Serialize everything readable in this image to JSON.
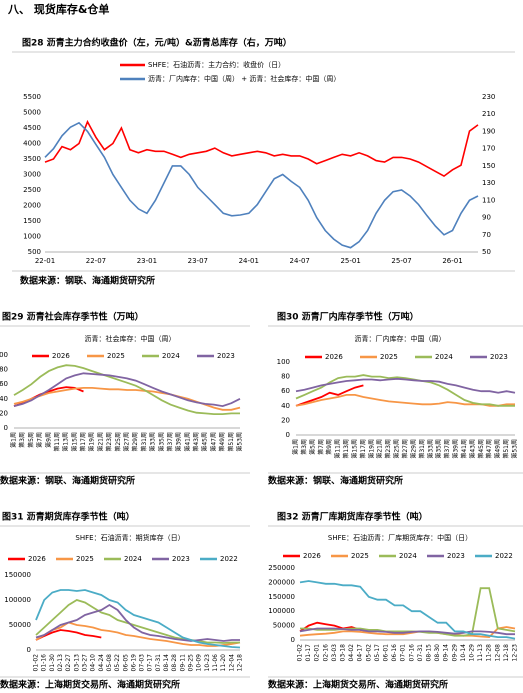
{
  "heading": "八、 现货库存&仓单",
  "chart_data": [
    {
      "type": "line",
      "title": "图28 沥青主力合约收盘价（左，元/吨）&沥青总库存（右，万吨）",
      "source": "数据来源：钢联、海通期货研究所",
      "categories": [
        "22-01",
        null,
        null,
        null,
        null,
        null,
        "22-07",
        null,
        null,
        null,
        null,
        null,
        "23-01",
        null,
        null,
        null,
        null,
        null,
        "23-07",
        null,
        null,
        null,
        null,
        null,
        "24-01",
        null,
        null,
        null,
        null,
        null,
        "24-07",
        null,
        null,
        null,
        null,
        null,
        "25-01",
        null,
        null,
        null,
        null,
        null,
        "25-07",
        null,
        null,
        null,
        null,
        null,
        "26-01",
        null,
        null,
        null
      ],
      "ylim": [
        500,
        5500
      ],
      "yticks": [
        500,
        1000,
        1500,
        2000,
        2500,
        3000,
        3500,
        4000,
        4500,
        5000,
        5500
      ],
      "y2lim": [
        50,
        230
      ],
      "y2ticks": [
        50,
        70,
        90,
        110,
        130,
        150,
        170,
        190,
        210,
        230
      ],
      "series": [
        {
          "name": "SHFE：石油沥青：主力合约：收盘价（日）",
          "color": "#ff0000",
          "values": [
            3400,
            3500,
            3900,
            3800,
            4000,
            4700,
            4200,
            3800,
            4000,
            4500,
            3800,
            3700,
            3800,
            3750,
            3750,
            3650,
            3550,
            3650,
            3700,
            3750,
            3850,
            3700,
            3600,
            3650,
            3700,
            3750,
            3700,
            3600,
            3650,
            3600,
            3600,
            3500,
            3350,
            3450,
            3550,
            3650,
            3600,
            3700,
            3600,
            3450,
            3400,
            3550,
            3550,
            3500,
            3400,
            3250,
            3100,
            2950,
            3150,
            3300,
            4400,
            4600
          ]
        },
        {
          "name": "沥青：厂内库存：中国（周） + 沥青：社会库存：中国（周）",
          "color": "#4f81bd",
          "axis": "y2",
          "values": [
            160,
            170,
            185,
            195,
            200,
            190,
            175,
            160,
            140,
            125,
            110,
            100,
            95,
            110,
            130,
            150,
            150,
            140,
            125,
            115,
            105,
            95,
            92,
            93,
            95,
            105,
            120,
            135,
            140,
            132,
            125,
            110,
            90,
            75,
            65,
            58,
            55,
            62,
            75,
            95,
            110,
            120,
            122,
            115,
            105,
            92,
            80,
            70,
            75,
            95,
            110,
            115
          ]
        }
      ]
    },
    {
      "type": "line",
      "title": "图29 沥青社会库存季节性（万吨）",
      "subtitle": "沥青：社会库存：中国（周）",
      "source": "数据来源：钢联、海通期货研究所",
      "categories": [
        "第1周",
        "第3周",
        "第5周",
        "第7周",
        "第9周",
        "第11周",
        "第13周",
        "第15周",
        "第17周",
        "第19周",
        "第21周",
        "第23周",
        "第25周",
        "第27周",
        "第29周",
        "第31周",
        "第33周",
        "第35周",
        "第37周",
        "第39周",
        "第41周",
        "第43周",
        "第45周",
        "第47周",
        "第49周",
        "第51周",
        "第53周"
      ],
      "ylim": [
        0,
        100
      ],
      "yticks": [
        0,
        20,
        40,
        60,
        80,
        100
      ],
      "series": [
        {
          "name": "2026",
          "color": "#ff0000",
          "values": [
            30,
            34,
            40,
            46,
            50,
            54,
            56,
            55,
            50,
            null,
            null,
            null,
            null,
            null,
            null,
            null,
            null,
            null,
            null,
            null,
            null,
            null,
            null,
            null,
            null,
            null,
            null
          ]
        },
        {
          "name": "2025",
          "color": "#f79646",
          "values": [
            33,
            36,
            40,
            44,
            48,
            50,
            52,
            54,
            55,
            55,
            54,
            53,
            53,
            52,
            52,
            51,
            50,
            48,
            46,
            43,
            40,
            36,
            32,
            28,
            25,
            25,
            28
          ]
        },
        {
          "name": "2024",
          "color": "#9bbb59",
          "values": [
            45,
            52,
            60,
            70,
            78,
            83,
            86,
            85,
            82,
            78,
            74,
            70,
            66,
            62,
            58,
            52,
            45,
            38,
            32,
            28,
            24,
            21,
            20,
            19,
            19,
            20,
            20
          ]
        },
        {
          "name": "2023",
          "color": "#8064a2",
          "values": [
            30,
            33,
            38,
            45,
            52,
            60,
            68,
            72,
            75,
            74,
            73,
            72,
            70,
            68,
            65,
            60,
            55,
            50,
            46,
            42,
            38,
            35,
            33,
            32,
            30,
            34,
            40
          ]
        }
      ]
    },
    {
      "type": "line",
      "title": "图30 沥青厂内库存季节性（万吨）",
      "subtitle": "沥青：厂内库存：中国（周）",
      "source": "数据来源：钢联、海通期货研究所",
      "categories": [
        "第1周",
        "第3周",
        "第5周",
        "第7周",
        "第9周",
        "第11周",
        "第13周",
        "第15周",
        "第17周",
        "第19周",
        "第21周",
        "第23周",
        "第25周",
        "第27周",
        "第29周",
        "第31周",
        "第33周",
        "第35周",
        "第37周",
        "第39周",
        "第41周",
        "第43周",
        "第45周",
        "第47周",
        "第49周",
        "第51周",
        "第53周"
      ],
      "ylim": [
        0,
        100
      ],
      "yticks": [
        0,
        20,
        40,
        60,
        80,
        100
      ],
      "series": [
        {
          "name": "2026",
          "color": "#ff0000",
          "values": [
            40,
            44,
            48,
            52,
            58,
            55,
            60,
            65,
            68,
            null,
            null,
            null,
            null,
            null,
            null,
            null,
            null,
            null,
            null,
            null,
            null,
            null,
            null,
            null,
            null,
            null,
            null
          ]
        },
        {
          "name": "2025",
          "color": "#f79646",
          "values": [
            40,
            42,
            45,
            48,
            50,
            52,
            55,
            55,
            52,
            50,
            48,
            46,
            45,
            44,
            43,
            42,
            42,
            43,
            45,
            44,
            42,
            42,
            42,
            40,
            40,
            42,
            42
          ]
        },
        {
          "name": "2024",
          "color": "#9bbb59",
          "values": [
            50,
            55,
            60,
            65,
            72,
            78,
            80,
            80,
            82,
            80,
            80,
            78,
            79,
            78,
            76,
            74,
            72,
            68,
            62,
            55,
            48,
            44,
            42,
            42,
            40,
            40,
            40
          ]
        },
        {
          "name": "2023",
          "color": "#8064a2",
          "values": [
            60,
            62,
            65,
            68,
            70,
            72,
            74,
            75,
            76,
            76,
            75,
            76,
            77,
            76,
            75,
            74,
            74,
            73,
            70,
            68,
            65,
            62,
            60,
            60,
            58,
            60,
            58
          ]
        }
      ]
    },
    {
      "type": "line",
      "title": "图31 沥青期货库存季节性（吨）",
      "subtitle": "SHFE：石油沥青：期货库存（日）",
      "source": "数据来源：上海期货交易所、海通期货研究所",
      "categories": [
        "01-02",
        "01-16",
        "01-30",
        "02-13",
        "02-27",
        "03-13",
        "03-27",
        "04-10",
        "04-24",
        "05-08",
        "05-22",
        "06-05",
        "06-19",
        "07-03",
        "07-17",
        "07-31",
        "08-14",
        "08-28",
        "09-11",
        "09-25",
        "10-09",
        "10-23",
        "11-06",
        "11-20",
        "12-04",
        "12-18"
      ],
      "ylim": [
        0,
        150000
      ],
      "yticks": [
        0,
        50000,
        100000,
        150000
      ],
      "series": [
        {
          "name": "2026",
          "color": "#ff0000",
          "values": [
            20000,
            28000,
            35000,
            40000,
            38000,
            35000,
            30000,
            28000,
            25000,
            null,
            null,
            null,
            null,
            null,
            null,
            null,
            null,
            null,
            null,
            null,
            null,
            null,
            null,
            null,
            null,
            null
          ]
        },
        {
          "name": "2025",
          "color": "#f79646",
          "values": [
            20000,
            30000,
            40000,
            45000,
            55000,
            50000,
            48000,
            45000,
            40000,
            38000,
            35000,
            30000,
            28000,
            25000,
            22000,
            20000,
            18000,
            15000,
            12000,
            10000,
            10000,
            8000,
            8000,
            10000,
            12000,
            15000
          ]
        },
        {
          "name": "2024",
          "color": "#9bbb59",
          "values": [
            30000,
            45000,
            60000,
            75000,
            90000,
            100000,
            95000,
            85000,
            75000,
            70000,
            60000,
            55000,
            50000,
            45000,
            40000,
            35000,
            30000,
            25000,
            22000,
            20000,
            18000,
            15000,
            15000,
            14000,
            15000,
            15000
          ]
        },
        {
          "name": "2023",
          "color": "#8064a2",
          "values": [
            25000,
            30000,
            40000,
            50000,
            55000,
            60000,
            70000,
            75000,
            80000,
            90000,
            80000,
            60000,
            45000,
            35000,
            30000,
            28000,
            25000,
            22000,
            20000,
            18000,
            20000,
            22000,
            20000,
            18000,
            20000,
            20000
          ]
        },
        {
          "name": "2022",
          "color": "#4bacc6",
          "values": [
            60000,
            100000,
            115000,
            120000,
            120000,
            118000,
            120000,
            115000,
            110000,
            100000,
            95000,
            80000,
            70000,
            65000,
            60000,
            55000,
            45000,
            35000,
            25000,
            20000,
            15000,
            12000,
            10000,
            8000,
            6000,
            5000
          ]
        }
      ]
    },
    {
      "type": "line",
      "title": "图32 沥青厂库期货库存季节性（吨）",
      "subtitle": "SHFE：石油沥青：厂库期货库存：中国（日）",
      "source": "数据来源：上海期货交易所、海通期货研究所",
      "categories": [
        "01-02",
        "01-17",
        "02-01",
        "02-16",
        "03-03",
        "03-18",
        "04-02",
        "04-17",
        "05-02",
        "05-17",
        "06-01",
        "06-16",
        "07-01",
        "07-16",
        "07-31",
        "08-15",
        "08-30",
        "09-14",
        "09-29",
        "10-14",
        "10-29",
        "11-13",
        "11-28",
        "12-08",
        "12-18",
        "12-23"
      ],
      "ylim": [
        0,
        250000
      ],
      "yticks": [
        0,
        50000,
        100000,
        150000,
        200000,
        250000
      ],
      "series": [
        {
          "name": "2026",
          "color": "#ff0000",
          "values": [
            30000,
            50000,
            60000,
            55000,
            50000,
            40000,
            45000,
            35000,
            30000,
            null,
            null,
            null,
            null,
            null,
            null,
            null,
            null,
            null,
            null,
            null,
            null,
            null,
            null,
            null,
            null,
            null
          ]
        },
        {
          "name": "2025",
          "color": "#f79646",
          "values": [
            15000,
            18000,
            20000,
            22000,
            25000,
            30000,
            30000,
            28000,
            25000,
            22000,
            20000,
            20000,
            20000,
            25000,
            30000,
            28000,
            25000,
            20000,
            20000,
            15000,
            15000,
            12000,
            10000,
            40000,
            45000,
            40000
          ]
        },
        {
          "name": "2024",
          "color": "#9bbb59",
          "values": [
            40000,
            40000,
            35000,
            35000,
            35000,
            38000,
            40000,
            40000,
            35000,
            35000,
            30000,
            30000,
            30000,
            30000,
            28000,
            25000,
            25000,
            20000,
            15000,
            15000,
            20000,
            180000,
            180000,
            40000,
            35000,
            30000
          ]
        },
        {
          "name": "2023",
          "color": "#8064a2",
          "values": [
            30000,
            35000,
            40000,
            40000,
            40000,
            38000,
            35000,
            35000,
            30000,
            30000,
            28000,
            25000,
            25000,
            28000,
            30000,
            30000,
            28000,
            25000,
            22000,
            25000,
            30000,
            30000,
            28000,
            25000,
            20000,
            20000
          ]
        },
        {
          "name": "2022",
          "color": "#4bacc6",
          "values": [
            200000,
            205000,
            200000,
            195000,
            195000,
            190000,
            190000,
            185000,
            150000,
            140000,
            140000,
            120000,
            120000,
            100000,
            100000,
            80000,
            60000,
            60000,
            30000,
            30000,
            20000,
            20000,
            15000,
            10000,
            10000,
            5000
          ]
        }
      ]
    }
  ]
}
